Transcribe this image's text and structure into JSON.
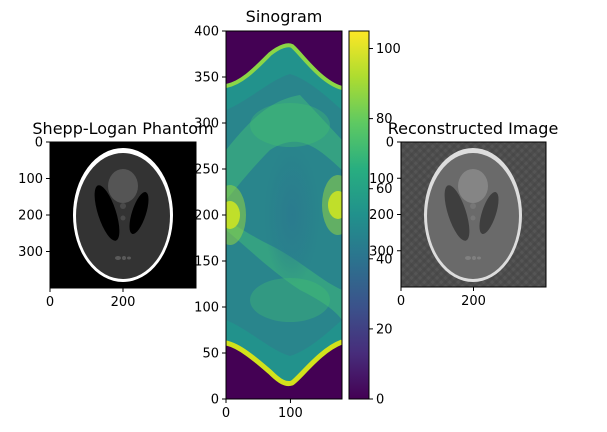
{
  "chart_data": [
    {
      "type": "heatmap",
      "title": "Shepp-Logan Phantom",
      "colormap": "gray",
      "xlim": [
        0,
        400
      ],
      "ylim": [
        400,
        0
      ],
      "xticks": [
        0,
        200
      ],
      "yticks": [
        0,
        100,
        200,
        300
      ],
      "xtick_labels": [
        "0",
        "200"
      ],
      "ytick_labels": [
        "0",
        "100",
        "200",
        "300"
      ]
    },
    {
      "type": "heatmap",
      "title": "Sinogram",
      "colormap": "viridis",
      "xlim": [
        0,
        180
      ],
      "ylim": [
        0,
        400
      ],
      "xticks": [
        0,
        100
      ],
      "yticks": [
        0,
        50,
        100,
        150,
        200,
        250,
        300,
        350,
        400
      ],
      "xtick_labels": [
        "0",
        "100"
      ],
      "ytick_labels": [
        "0",
        "50",
        "100",
        "150",
        "200",
        "250",
        "300",
        "350",
        "400"
      ],
      "colorbar": {
        "range": [
          0,
          105
        ],
        "ticks": [
          0,
          20,
          40,
          60,
          80,
          100
        ],
        "tick_labels": [
          "0",
          "20",
          "40",
          "60",
          "80",
          "100"
        ]
      }
    },
    {
      "type": "heatmap",
      "title": "Reconstructed Image",
      "colormap": "gray",
      "xlim": [
        0,
        400
      ],
      "ylim": [
        400,
        0
      ],
      "xticks": [
        0,
        200
      ],
      "yticks": [
        0,
        100,
        200,
        300
      ],
      "xtick_labels": [
        "0",
        "200"
      ],
      "ytick_labels": [
        "0",
        "100",
        "200",
        "300"
      ]
    }
  ]
}
